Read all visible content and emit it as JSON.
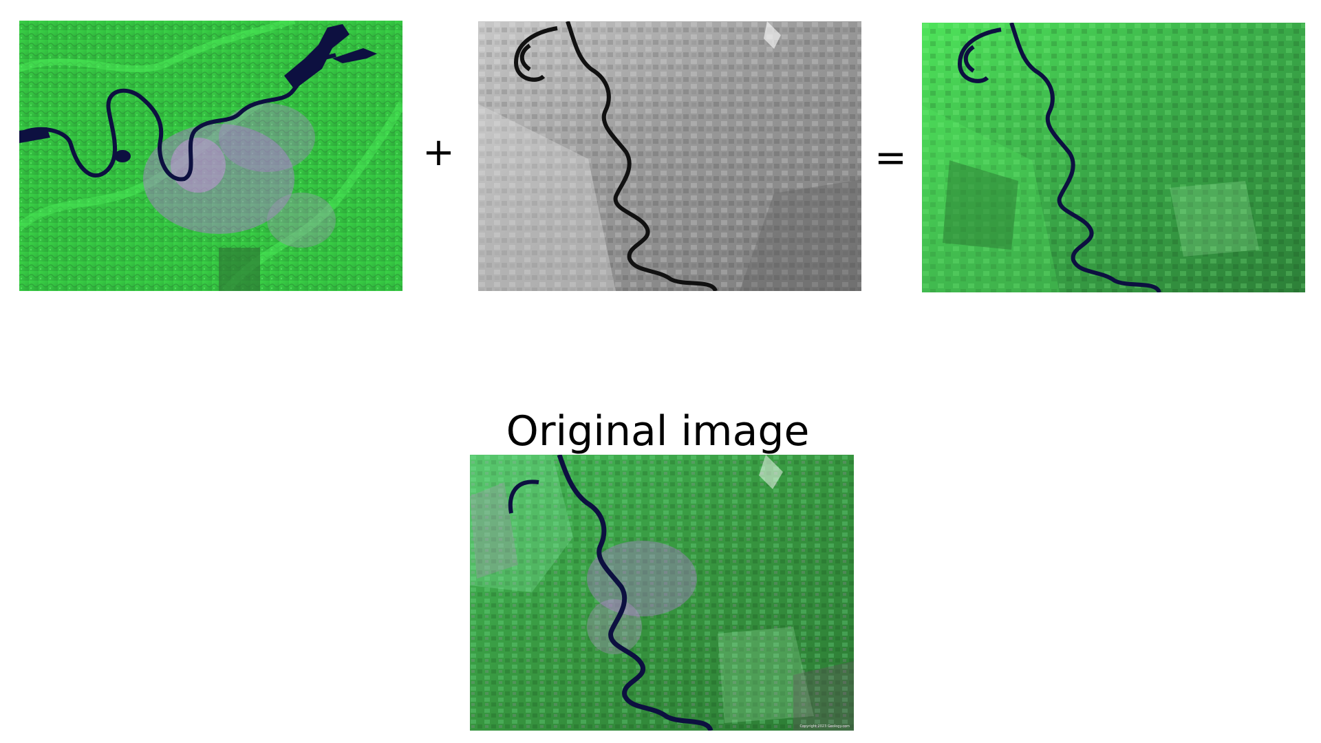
{
  "figure": {
    "operators": {
      "plus": "+",
      "equals": "="
    },
    "caption": "Original image",
    "original_credit": "Copyright 2023 Geology.com"
  },
  "icons": {
    "panel_color": "false-color-satellite-image",
    "panel_gray": "grayscale-satellite-image",
    "panel_result": "fused-satellite-image",
    "panel_original": "original-satellite-image"
  },
  "colors": {
    "vegetation": "#3fd84a",
    "vegetation_dark": "#2f8f3a",
    "urban": "#b473d6",
    "water": "#0d1040",
    "gray_light": "#bdbdbd",
    "gray_dark": "#5a5a5a"
  }
}
